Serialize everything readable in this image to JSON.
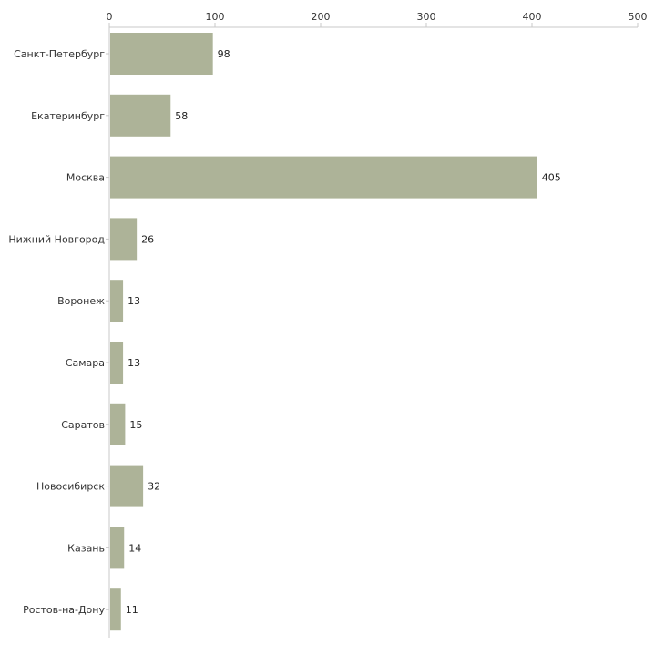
{
  "chart_data": {
    "type": "bar",
    "orientation": "horizontal",
    "title": "",
    "xlabel": "",
    "ylabel": "",
    "xlim": [
      0,
      500
    ],
    "x_ticks": [
      0,
      100,
      200,
      300,
      400,
      500
    ],
    "x_axis_position": "top",
    "grid": false,
    "bar_color": "#adb398",
    "categories": [
      "Санкт-Петербург",
      "Екатеринбург",
      "Москва",
      "Нижний Новгород",
      "Воронеж",
      "Самара",
      "Саратов",
      "Новосибирск",
      "Казань",
      "Ростов-на-Дону"
    ],
    "values": [
      98,
      58,
      405,
      26,
      13,
      13,
      15,
      32,
      14,
      11
    ]
  }
}
